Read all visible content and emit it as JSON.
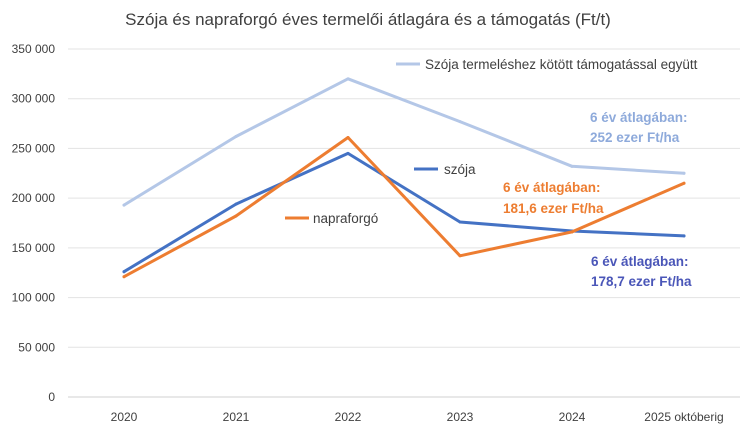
{
  "chart_data": {
    "type": "line",
    "title": "Szója és napraforgó éves termelői átlagára és a támogatás (Ft/t)",
    "categories": [
      "2020",
      "2021",
      "2022",
      "2023",
      "2024",
      "2025 októberig"
    ],
    "y_ticks": [
      "0",
      "50 000",
      "100 000",
      "150 000",
      "200 000",
      "250 000",
      "300 000",
      "350 000"
    ],
    "ylim": [
      0,
      350000
    ],
    "grid": true,
    "series": [
      {
        "name": "Szója termeléshez kötött támogatással együtt",
        "color": "#b4c7e7",
        "values": [
          193000,
          262000,
          320000,
          277000,
          232000,
          225000
        ]
      },
      {
        "name": "szója",
        "color": "#4472c4",
        "values": [
          126000,
          194000,
          245000,
          176000,
          167000,
          162000
        ]
      },
      {
        "name": "napraforgó",
        "color": "#ed7d31",
        "values": [
          121000,
          182000,
          261000,
          142000,
          166000,
          215000
        ]
      }
    ],
    "annotations": [
      {
        "line1": "6 év átlagában:",
        "line2": "252 ezer Ft/ha",
        "color": "#8eaadb"
      },
      {
        "line1": "6 év átlagában:",
        "line2": "181,6 ezer Ft/ha",
        "color": "#ed7d31"
      },
      {
        "line1": "6 év átlagában:",
        "line2": "178,7 ezer Ft/ha",
        "color": "#4a56b8"
      }
    ]
  }
}
